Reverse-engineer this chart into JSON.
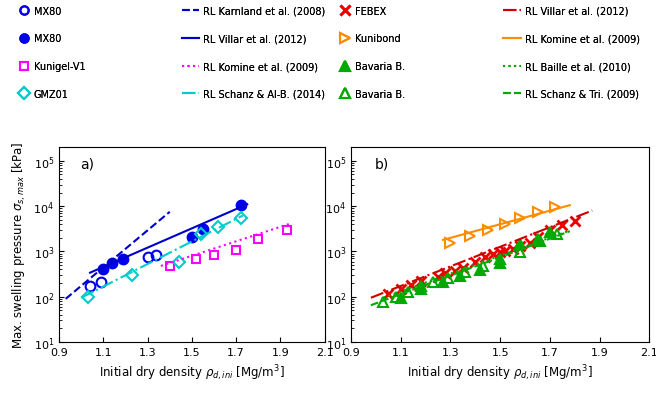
{
  "panel_a": {
    "label": "a)",
    "series": {
      "MX80_open": {
        "x": [
          1.04,
          1.09,
          1.3,
          1.34
        ],
        "y": [
          175,
          215,
          750,
          840
        ],
        "color": "#0000EE",
        "marker": "o",
        "filled": false,
        "ms": 7
      },
      "MX80_filled": {
        "x": [
          1.1,
          1.14,
          1.19,
          1.5,
          1.55,
          1.72
        ],
        "y": [
          420,
          560,
          680,
          2100,
          3100,
          10500
        ],
        "color": "#0000EE",
        "marker": "o",
        "filled": true,
        "ms": 7
      },
      "Kunigel_V1": {
        "x": [
          1.4,
          1.52,
          1.6,
          1.7,
          1.8,
          1.93
        ],
        "y": [
          480,
          680,
          820,
          1050,
          1900,
          2900
        ],
        "color": "#FF00FF",
        "marker": "s",
        "filled": false,
        "ms": 6
      },
      "GMZ01": {
        "x": [
          1.03,
          1.23,
          1.44,
          1.54,
          1.62,
          1.72
        ],
        "y": [
          97,
          295,
          580,
          2450,
          3400,
          5400
        ],
        "color": "#00CCCC",
        "marker": "D",
        "filled": false,
        "ms": 6
      }
    },
    "ref_lines": {
      "Karnland2008": {
        "x": [
          0.93,
          1.4
        ],
        "y": [
          90,
          7500
        ],
        "color": "#0000CC",
        "ls": "--",
        "lw": 1.5,
        "label": "RL Karnland et al. (2008)"
      },
      "Villar2012": {
        "x": [
          1.04,
          1.75
        ],
        "y": [
          340,
          11000
        ],
        "color": "#0000CC",
        "ls": "-",
        "lw": 1.5,
        "label": "RL Villar et al. (2012)"
      },
      "Komine2009": {
        "x": [
          1.36,
          1.95
        ],
        "y": [
          480,
          4200
        ],
        "color": "#FF00FF",
        "ls": ":",
        "lw": 1.5,
        "label": "RL Komine et al. (2009)"
      },
      "Schanz2014": {
        "x": [
          1.0,
          1.73
        ],
        "y": [
          95,
          6200
        ],
        "color": "#00CCCC",
        "ls": "-.",
        "lw": 1.5,
        "label": "RL Schanz & Al-B. (2014)"
      }
    },
    "legend_markers": [
      {
        "label": "MX80",
        "marker": "o",
        "filled": false,
        "color": "#0000EE",
        "ms": 6
      },
      {
        "label": "MX80",
        "marker": "o",
        "filled": true,
        "color": "#0000EE",
        "ms": 6
      },
      {
        "label": "Kunigel-V1",
        "marker": "s",
        "filled": false,
        "color": "#FF00FF",
        "ms": 6
      },
      {
        "label": "GMZ01",
        "marker": "D",
        "filled": false,
        "color": "#00CCCC",
        "ms": 6
      }
    ],
    "legend_lines": [
      {
        "label": "RL Karnland et al. (2008)",
        "color": "#0000CC",
        "ls": "--"
      },
      {
        "label": "RL Villar et al. (2012)",
        "color": "#0000CC",
        "ls": "-"
      },
      {
        "label": "RL Komine et al. (2009)",
        "color": "#FF00FF",
        "ls": ":"
      },
      {
        "label": "RL Schanz & Al-B. (2014)",
        "color": "#00CCCC",
        "ls": "-."
      }
    ]
  },
  "panel_b": {
    "label": "b)",
    "series": {
      "FEBEX": {
        "x": [
          1.05,
          1.1,
          1.14,
          1.18,
          1.25,
          1.28,
          1.32,
          1.35,
          1.4,
          1.44,
          1.47,
          1.5,
          1.52,
          1.55,
          1.58,
          1.62,
          1.65,
          1.7,
          1.75,
          1.8
        ],
        "y": [
          115,
          148,
          178,
          225,
          275,
          340,
          370,
          440,
          580,
          760,
          870,
          960,
          1020,
          1150,
          1350,
          1550,
          2100,
          2900,
          3900,
          4800
        ],
        "color": "#EE0000",
        "marker": "x",
        "filled": true,
        "ms": 7
      },
      "Kunibond": {
        "x": [
          1.3,
          1.38,
          1.45,
          1.52,
          1.58,
          1.65,
          1.72
        ],
        "y": [
          1500,
          2200,
          3000,
          4000,
          5500,
          7500,
          9500
        ],
        "color": "#FF8C00",
        "marker": ">",
        "filled": false,
        "ms": 7
      },
      "Bavaria_filled": {
        "x": [
          1.1,
          1.18,
          1.27,
          1.34,
          1.42,
          1.5,
          1.58,
          1.65,
          1.7
        ],
        "y": [
          95,
          150,
          210,
          290,
          390,
          570,
          1450,
          1900,
          2700
        ],
        "color": "#00AA00",
        "marker": "^",
        "filled": true,
        "ms": 7
      },
      "Bavaria_open": {
        "x": [
          1.03,
          1.08,
          1.13,
          1.18,
          1.23,
          1.29,
          1.36,
          1.43,
          1.5,
          1.58,
          1.66,
          1.73
        ],
        "y": [
          75,
          100,
          130,
          170,
          210,
          265,
          360,
          480,
          670,
          950,
          1700,
          2400
        ],
        "color": "#00AA00",
        "marker": "^",
        "filled": false,
        "ms": 7
      }
    },
    "ref_lines": {
      "Villar2012": {
        "x": [
          0.98,
          1.87
        ],
        "y": [
          95,
          8000
        ],
        "color": "#CC0000",
        "ls": "-.",
        "lw": 1.5,
        "label": "RL Villar et al. (2012)"
      },
      "Komine2009": {
        "x": [
          1.27,
          1.78
        ],
        "y": [
          1800,
          10500
        ],
        "color": "#FF8C00",
        "ls": "-",
        "lw": 1.5,
        "label": "RL Komine et al. (2009)"
      },
      "Baille2010": {
        "x": [
          1.03,
          1.78
        ],
        "y": [
          95,
          2900
        ],
        "color": "#00AA00",
        "ls": ":",
        "lw": 1.5,
        "label": "RL Baille et al. (2010)"
      },
      "Schanz2009": {
        "x": [
          0.98,
          1.78
        ],
        "y": [
          65,
          2800
        ],
        "color": "#00AA00",
        "ls": "--",
        "lw": 1.5,
        "label": "RL Schanz & Tri. (2009)"
      }
    },
    "legend_markers": [
      {
        "label": "FEBEX",
        "marker": "x",
        "filled": true,
        "color": "#EE0000",
        "ms": 7
      },
      {
        "label": "Kunibond",
        "marker": ">",
        "filled": false,
        "color": "#FF8C00",
        "ms": 7
      },
      {
        "label": "Bavaria B.",
        "marker": "^",
        "filled": true,
        "color": "#00AA00",
        "ms": 7
      },
      {
        "label": "Bavaria B.",
        "marker": "^",
        "filled": false,
        "color": "#00AA00",
        "ms": 7
      }
    ],
    "legend_lines": [
      {
        "label": "RL Villar et al. (2012)",
        "color": "#CC0000",
        "ls": "-."
      },
      {
        "label": "RL Komine et al. (2009)",
        "color": "#FF8C00",
        "ls": "-"
      },
      {
        "label": "RL Baille et al. (2010)",
        "color": "#00AA00",
        "ls": ":"
      },
      {
        "label": "RL Schanz & Tri. (2009)",
        "color": "#00AA00",
        "ls": "--"
      }
    ]
  },
  "ylabel": "Max. swelling pressure $\\sigma_{s,max}$ [kPa]",
  "xlabel": "Initial dry density $\\rho_{d,ini}$ [Mg/m$^3$]",
  "xlim": [
    0.9,
    2.1
  ],
  "ylim": [
    10,
    200000
  ],
  "xticks": [
    0.9,
    1.1,
    1.3,
    1.5,
    1.7,
    1.9,
    2.1
  ]
}
